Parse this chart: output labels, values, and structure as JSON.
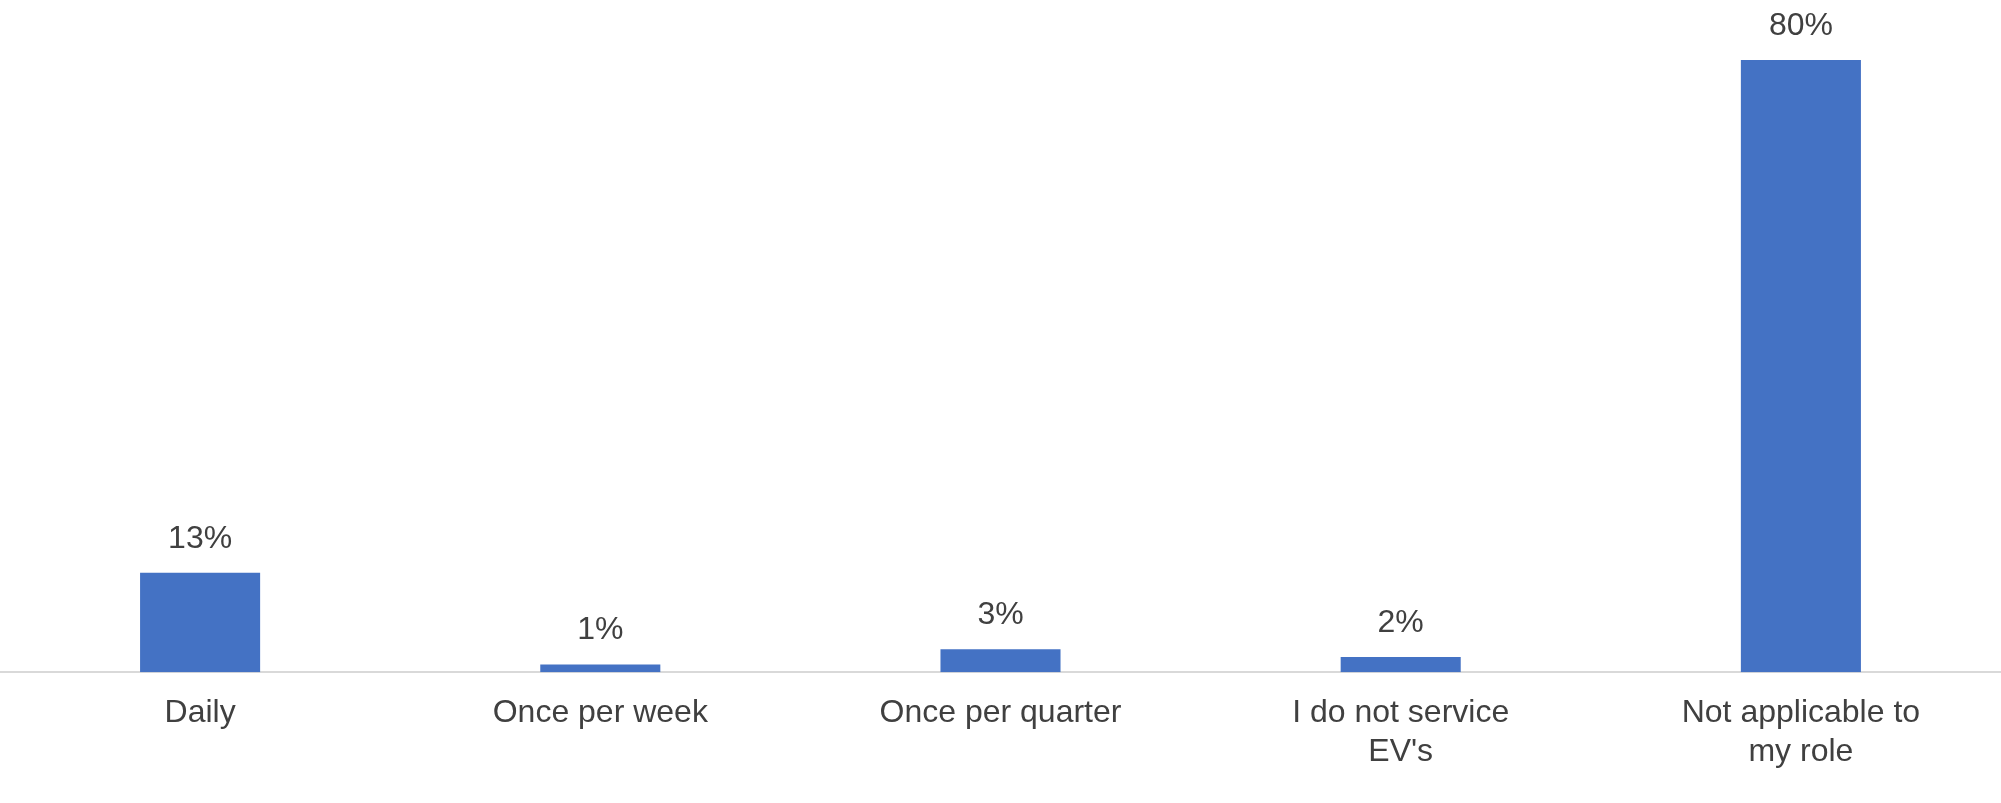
{
  "chart_data": {
    "type": "bar",
    "categories": [
      "Daily",
      "Once per week",
      "Once per quarter",
      "I do not service EV's",
      "Not applicable to my role"
    ],
    "values": [
      13,
      1,
      3,
      2,
      80
    ],
    "color": "#4472c4",
    "value_labels": [
      "13%",
      "1%",
      "3%",
      "2%",
      "80%"
    ],
    "grid": false,
    "legend": false
  }
}
